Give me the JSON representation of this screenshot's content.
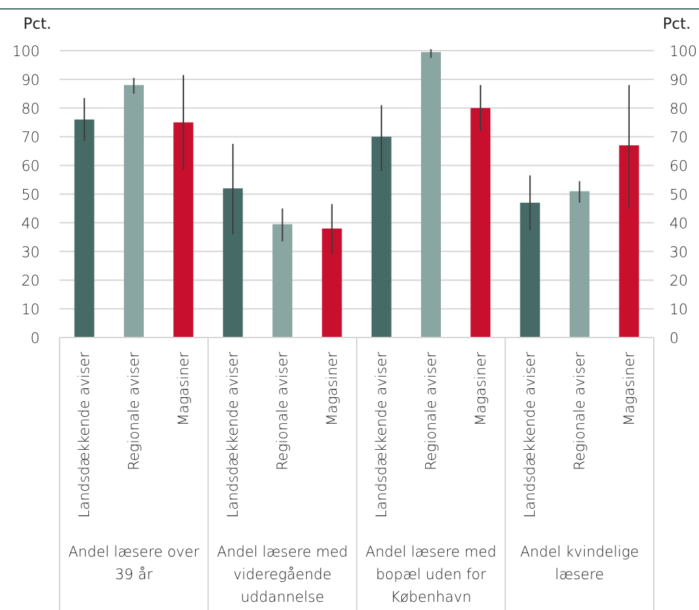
{
  "chart_data": {
    "type": "bar",
    "left_axis_label": "Pct.",
    "right_axis_label": "Pct.",
    "ylim": [
      0,
      100
    ],
    "yticks": [
      "0",
      "10",
      "20",
      "30",
      "40",
      "50",
      "60",
      "70",
      "80",
      "90",
      "100"
    ],
    "grid": true,
    "colors": {
      "Landsdækkende aviser": "#466b66",
      "Regionale aviser": "#8aa6a3",
      "Magasiner": "#c8102e"
    },
    "groups": [
      {
        "label": "Andel læsere over 39 år",
        "label_lines": [
          "Andel læsere over",
          "39 år"
        ],
        "bars": [
          {
            "category": "Landsdækkende aviser",
            "value": 76,
            "err_low": 68.5,
            "err_high": 83.5
          },
          {
            "category": "Regionale aviser",
            "value": 88,
            "err_low": 85,
            "err_high": 90.5
          },
          {
            "category": "Magasiner",
            "value": 75,
            "err_low": 58.5,
            "err_high": 91.5
          }
        ]
      },
      {
        "label": "Andel læsere med videregående uddannelse",
        "label_lines": [
          "Andel læsere med",
          "videregående",
          "uddannelse"
        ],
        "bars": [
          {
            "category": "Landsdækkende aviser",
            "value": 52,
            "err_low": 36,
            "err_high": 67.5
          },
          {
            "category": "Regionale aviser",
            "value": 39.5,
            "err_low": 33.5,
            "err_high": 45
          },
          {
            "category": "Magasiner",
            "value": 38,
            "err_low": 29,
            "err_high": 46.5
          }
        ]
      },
      {
        "label": "Andel læsere med bopæl uden for København",
        "label_lines": [
          "Andel læsere med",
          "bopæl uden for",
          "København"
        ],
        "bars": [
          {
            "category": "Landsdækkende aviser",
            "value": 70,
            "err_low": 58,
            "err_high": 81
          },
          {
            "category": "Regionale aviser",
            "value": 99.5,
            "err_low": 97.5,
            "err_high": 100.5
          },
          {
            "category": "Magasiner",
            "value": 80,
            "err_low": 72,
            "err_high": 88
          }
        ]
      },
      {
        "label": "Andel kvindelige læsere",
        "label_lines": [
          "Andel kvindelige",
          "læsere"
        ],
        "bars": [
          {
            "category": "Landsdækkende aviser",
            "value": 47,
            "err_low": 37.5,
            "err_high": 56.5
          },
          {
            "category": "Regionale aviser",
            "value": 51,
            "err_low": 47,
            "err_high": 54.5
          },
          {
            "category": "Magasiner",
            "value": 67,
            "err_low": 45,
            "err_high": 88
          }
        ]
      }
    ]
  }
}
